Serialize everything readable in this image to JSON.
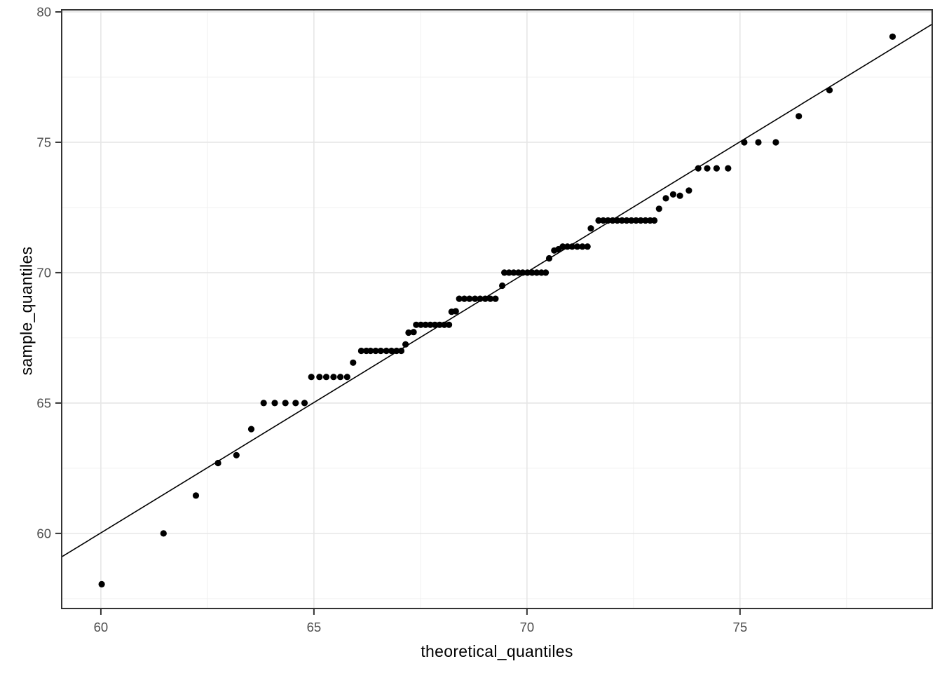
{
  "chart_data": {
    "type": "scatter",
    "title": "",
    "xlabel": "theoretical_quantiles",
    "ylabel": "sample_quantiles",
    "xlim": [
      59.08,
      79.51
    ],
    "ylim": [
      57.12,
      80.08
    ],
    "x_ticks_major": [
      60,
      65,
      70,
      75
    ],
    "x_ticks_minor": [
      62.5,
      67.5,
      72.5,
      77.5
    ],
    "y_ticks_major": [
      60,
      65,
      70,
      75,
      80
    ],
    "y_ticks_minor": [
      57.5,
      62.5,
      67.5,
      72.5,
      77.5
    ],
    "grid": true,
    "legend_position": "none",
    "reference_line": {
      "slope": 1.0,
      "intercept": 0.02
    },
    "style": {
      "point_color": "#000000",
      "point_radius": 4.6,
      "line_color": "#000000",
      "line_width": 1.6,
      "panel_background": "#ffffff",
      "panel_border_color": "#333333",
      "grid_major_color": "#e6e6e6",
      "grid_minor_color": "#f0f0f0",
      "tick_color": "#333333",
      "tick_label_color": "#4d4d4d",
      "tick_label_size": 18.5,
      "axis_title_color": "#000000"
    },
    "points": [
      [
        60.02,
        58.05
      ],
      [
        61.47,
        60.0
      ],
      [
        62.23,
        61.45
      ],
      [
        62.75,
        62.7
      ],
      [
        63.18,
        63.0
      ],
      [
        63.53,
        64.0
      ],
      [
        63.82,
        65.0
      ],
      [
        64.08,
        65.0
      ],
      [
        64.33,
        65.0
      ],
      [
        64.57,
        65.0
      ],
      [
        64.78,
        65.0
      ],
      [
        64.94,
        66.0
      ],
      [
        65.13,
        66.0
      ],
      [
        65.29,
        66.0
      ],
      [
        65.46,
        66.0
      ],
      [
        65.62,
        66.0
      ],
      [
        65.78,
        66.0
      ],
      [
        65.92,
        66.55
      ],
      [
        66.11,
        67.0
      ],
      [
        66.23,
        67.0
      ],
      [
        66.33,
        67.0
      ],
      [
        66.45,
        67.0
      ],
      [
        66.57,
        67.0
      ],
      [
        66.7,
        67.0
      ],
      [
        66.82,
        67.0
      ],
      [
        66.94,
        67.0
      ],
      [
        67.05,
        67.0
      ],
      [
        67.15,
        67.25
      ],
      [
        67.22,
        67.7
      ],
      [
        67.34,
        67.72
      ],
      [
        67.4,
        68.0
      ],
      [
        67.51,
        68.0
      ],
      [
        67.62,
        68.0
      ],
      [
        67.73,
        68.0
      ],
      [
        67.84,
        68.0
      ],
      [
        67.95,
        68.0
      ],
      [
        68.06,
        68.0
      ],
      [
        68.17,
        68.0
      ],
      [
        68.23,
        68.5
      ],
      [
        68.33,
        68.52
      ],
      [
        68.41,
        69.0
      ],
      [
        68.53,
        69.0
      ],
      [
        68.65,
        69.0
      ],
      [
        68.78,
        69.0
      ],
      [
        68.9,
        69.0
      ],
      [
        69.02,
        69.0
      ],
      [
        69.14,
        69.0
      ],
      [
        69.26,
        69.0
      ],
      [
        69.42,
        69.5
      ],
      [
        69.47,
        70.0
      ],
      [
        69.58,
        70.0
      ],
      [
        69.69,
        70.0
      ],
      [
        69.8,
        70.0
      ],
      [
        69.9,
        70.0
      ],
      [
        70.01,
        70.0
      ],
      [
        70.12,
        70.0
      ],
      [
        70.23,
        70.0
      ],
      [
        70.34,
        70.0
      ],
      [
        70.44,
        70.0
      ],
      [
        70.52,
        70.55
      ],
      [
        70.64,
        70.85
      ],
      [
        70.74,
        70.9
      ],
      [
        70.84,
        71.0
      ],
      [
        70.95,
        71.0
      ],
      [
        71.06,
        71.0
      ],
      [
        71.18,
        71.0
      ],
      [
        71.3,
        71.0
      ],
      [
        71.42,
        71.0
      ],
      [
        71.5,
        71.7
      ],
      [
        71.68,
        72.0
      ],
      [
        71.79,
        72.0
      ],
      [
        71.9,
        72.0
      ],
      [
        72.01,
        72.0
      ],
      [
        72.12,
        72.0
      ],
      [
        72.23,
        72.0
      ],
      [
        72.34,
        72.0
      ],
      [
        72.45,
        72.0
      ],
      [
        72.56,
        72.0
      ],
      [
        72.67,
        72.0
      ],
      [
        72.78,
        72.0
      ],
      [
        72.89,
        72.0
      ],
      [
        72.99,
        72.0
      ],
      [
        73.1,
        72.45
      ],
      [
        73.26,
        72.85
      ],
      [
        73.43,
        73.0
      ],
      [
        73.59,
        72.95
      ],
      [
        73.8,
        73.15
      ],
      [
        74.02,
        74.0
      ],
      [
        74.23,
        74.0
      ],
      [
        74.45,
        74.0
      ],
      [
        74.72,
        74.0
      ],
      [
        75.1,
        75.0
      ],
      [
        75.43,
        75.0
      ],
      [
        75.84,
        75.0
      ],
      [
        76.38,
        76.0
      ],
      [
        77.1,
        77.0
      ],
      [
        78.58,
        79.05
      ]
    ]
  }
}
